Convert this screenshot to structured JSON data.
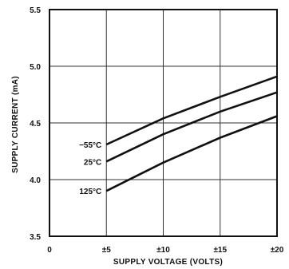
{
  "chart_data": {
    "type": "line",
    "title": "",
    "xlabel": "SUPPLY VOLTAGE (VOLTS)",
    "ylabel": "SUPPLY CURRENT (mA)",
    "xlim": [
      0,
      20
    ],
    "ylim": [
      3.5,
      5.5
    ],
    "grid": true,
    "x_ticks": [
      {
        "value": 0,
        "label": "0"
      },
      {
        "value": 5,
        "label": "±5"
      },
      {
        "value": 10,
        "label": "±10"
      },
      {
        "value": 15,
        "label": "±15"
      },
      {
        "value": 20,
        "label": "±20"
      }
    ],
    "y_ticks": [
      {
        "value": 3.5,
        "label": "3.5"
      },
      {
        "value": 4.0,
        "label": "4.0"
      },
      {
        "value": 4.5,
        "label": "4.5"
      },
      {
        "value": 5.0,
        "label": "5.0"
      },
      {
        "value": 5.5,
        "label": "5.5"
      }
    ],
    "series": [
      {
        "name": "−55°C",
        "x": [
          5,
          10,
          15,
          20
        ],
        "y": [
          4.31,
          4.54,
          4.73,
          4.91
        ]
      },
      {
        "name": "25°C",
        "x": [
          5,
          10,
          15,
          20
        ],
        "y": [
          4.16,
          4.4,
          4.6,
          4.77
        ]
      },
      {
        "name": "125°C",
        "x": [
          5,
          10,
          15,
          20
        ],
        "y": [
          3.9,
          4.15,
          4.37,
          4.56
        ]
      }
    ]
  }
}
